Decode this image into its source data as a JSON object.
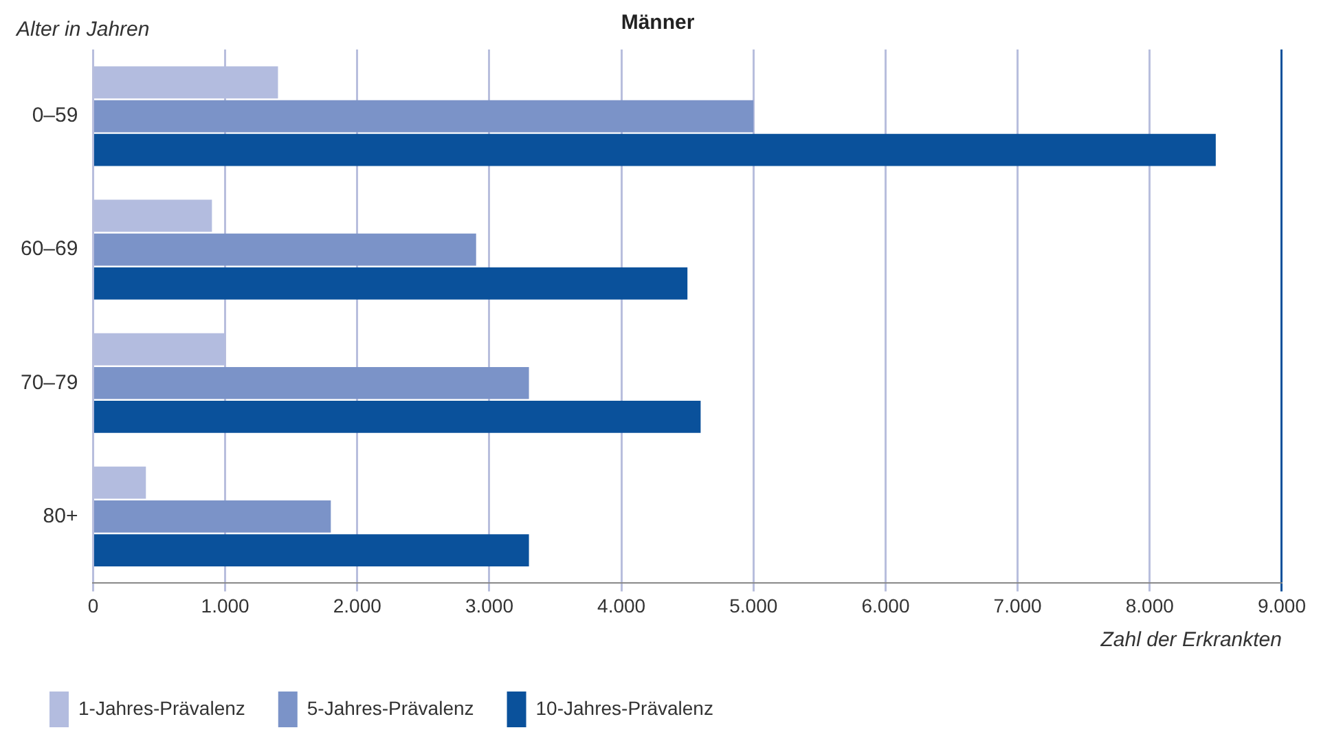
{
  "chart_data": {
    "type": "bar",
    "orientation": "horizontal",
    "title": "Männer",
    "ylabel": "Alter in Jahren",
    "xlabel": "Zahl der Erkrankten",
    "categories": [
      "0–59",
      "60–69",
      "70–79",
      "80+"
    ],
    "series": [
      {
        "name": "1-Jahres-Prävalenz",
        "color": "#b3bcdf",
        "values": [
          1400,
          900,
          1000,
          400
        ]
      },
      {
        "name": "5-Jahres-Prävalenz",
        "color": "#7b93c8",
        "values": [
          5000,
          2900,
          3300,
          1800
        ]
      },
      {
        "name": "10-Jahres-Prävalenz",
        "color": "#0a519b",
        "values": [
          8500,
          4500,
          4600,
          3300
        ]
      }
    ],
    "xlim": [
      0,
      9000
    ],
    "xticks": [
      0,
      {
        "value": 1000,
        "label": "1.000"
      },
      {
        "value": 2000,
        "label": "2.000"
      },
      {
        "value": 3000,
        "label": "3.000"
      },
      {
        "value": 4000,
        "label": "4.000"
      },
      {
        "value": 5000,
        "label": "5.000"
      },
      {
        "value": 6000,
        "label": "6.000"
      },
      {
        "value": 7000,
        "label": "7.000"
      },
      {
        "value": 8000,
        "label": "8.000"
      },
      {
        "value": 9000,
        "label": "9.000"
      }
    ],
    "grid": "x",
    "legend": "bottom"
  }
}
